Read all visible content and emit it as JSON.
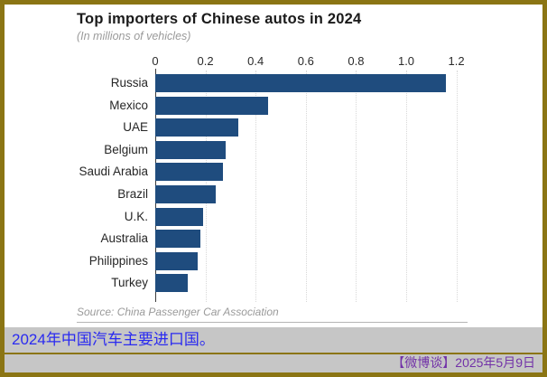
{
  "chart": {
    "title": "Top importers of Chinese autos in 2024",
    "subtitle": "(In millions of vehicles)",
    "source": "Source: China Passenger Car Association"
  },
  "banner": {
    "caption": "2024年中国汽车主要进口国。",
    "credit": "【微博谈】2025年5月9日"
  },
  "colors": {
    "bar": "#1f4c7e",
    "frame_border": "#8b7514",
    "banner_background": "#c6c6c6",
    "caption_blue": "#2a2af0",
    "credit_purple": "#7232a8"
  },
  "chart_data": {
    "type": "bar",
    "orientation": "horizontal",
    "title": "Top importers of Chinese autos in 2024",
    "subtitle": "(In millions of vehicles)",
    "xlabel": "",
    "ylabel": "",
    "categories": [
      "Russia",
      "Mexico",
      "UAE",
      "Belgium",
      "Saudi Arabia",
      "Brazil",
      "U.K.",
      "Australia",
      "Philippines",
      "Turkey"
    ],
    "values": [
      1.16,
      0.45,
      0.33,
      0.28,
      0.27,
      0.24,
      0.19,
      0.18,
      0.17,
      0.13
    ],
    "xlim": [
      0,
      1.2
    ],
    "xtick_values": [
      0,
      0.2,
      0.4,
      0.6,
      0.8,
      1.0,
      1.2
    ],
    "xtick_labels": [
      "0",
      "0.2",
      "0.4",
      "0.6",
      "0.8",
      "1.0",
      "1.2"
    ],
    "grid": "vertical-dotted",
    "legend": "none",
    "source": "Source: China Passenger Car Association"
  }
}
